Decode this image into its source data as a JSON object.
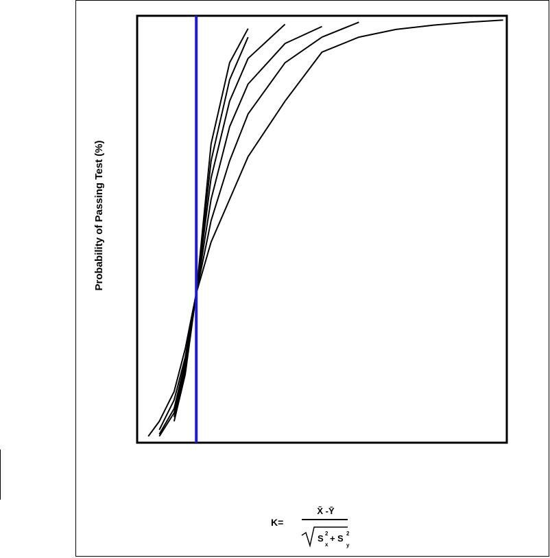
{
  "chart_data": {
    "type": "line",
    "y_label": "Probability of Passing Test (%)",
    "x_label": {
      "lhs": "K=",
      "numerator": "X̄ -Ȳ",
      "denominator_s1": "S",
      "sub1": "x",
      "sup1": "2",
      "plus": "+",
      "denominator_s2": "S",
      "sub2": "y",
      "sup2": "2"
    },
    "x": [
      3,
      6,
      10,
      13,
      16,
      20,
      25,
      30,
      40,
      50,
      60,
      70,
      80,
      90,
      99
    ],
    "xlim": [
      0,
      100
    ],
    "ylim": [
      0,
      100
    ],
    "reference_line": {
      "x": 16,
      "color": "#1a1add"
    },
    "series": [
      {
        "color": "#000000",
        "values": [
          1.5,
          5,
          12,
          22,
          35,
          47,
          57,
          67,
          80,
          91.5,
          95,
          96.8,
          97.8,
          98.5,
          99
        ]
      },
      {
        "color": "#000000",
        "values": [
          null,
          3,
          10,
          20,
          35,
          52,
          66,
          77,
          89,
          95,
          98.5,
          null,
          null,
          null,
          null
        ]
      },
      {
        "color": "#000000",
        "values": [
          null,
          2,
          8,
          19,
          35,
          57,
          74,
          84,
          93.5,
          97.5,
          null,
          null,
          null,
          null,
          null
        ]
      },
      {
        "color": "#000000",
        "values": [
          null,
          1.5,
          7,
          18,
          35,
          62,
          80,
          90,
          98,
          null,
          null,
          null,
          null,
          null,
          null
        ]
      },
      {
        "color": "#000000",
        "values": [
          null,
          null,
          6,
          17,
          35,
          66,
          85,
          95,
          null,
          null,
          null,
          null,
          null,
          null,
          null
        ]
      },
      {
        "color": "#000000",
        "values": [
          null,
          null,
          5,
          16,
          35,
          70,
          89,
          97,
          null,
          null,
          null,
          null,
          null,
          null,
          null
        ]
      }
    ]
  }
}
